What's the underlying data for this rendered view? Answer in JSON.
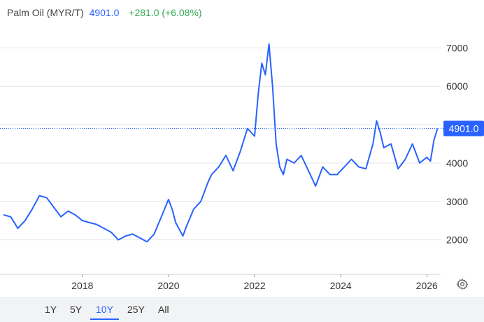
{
  "header": {
    "instrument": "Palm Oil (MYR/T)",
    "price": "4901.0",
    "change": "+281.0 (+6.08%)"
  },
  "colors": {
    "line": "#2962ff",
    "positive": "#34a853",
    "grid": "#e6e6e6"
  },
  "price_tag": "4901.0",
  "ranges": [
    {
      "label": "1Y",
      "active": false
    },
    {
      "label": "5Y",
      "active": false
    },
    {
      "label": "10Y",
      "active": true
    },
    {
      "label": "25Y",
      "active": false
    },
    {
      "label": "All",
      "active": false
    }
  ],
  "settings_icon": "gear-icon",
  "chart_data": {
    "type": "line",
    "title": "Palm Oil (MYR/T)",
    "xlabel": "",
    "ylabel": "",
    "x_ticks": [
      "2018",
      "2020",
      "2022",
      "2024",
      "2026"
    ],
    "y_ticks": [
      2000,
      3000,
      4000,
      5000,
      6000,
      7000
    ],
    "xlim": [
      "2016-03-01",
      "2026-04-15"
    ],
    "ylim": [
      1100,
      7700
    ],
    "grid": "horizontal",
    "last_value": 4901.0,
    "series": [
      {
        "points": [
          [
            "2016-03",
            2650
          ],
          [
            "2016-05",
            2600
          ],
          [
            "2016-07",
            2300
          ],
          [
            "2016-09",
            2500
          ],
          [
            "2016-11",
            2800
          ],
          [
            "2017-01",
            3150
          ],
          [
            "2017-03",
            3100
          ],
          [
            "2017-05",
            2850
          ],
          [
            "2017-07",
            2600
          ],
          [
            "2017-09",
            2750
          ],
          [
            "2017-11",
            2650
          ],
          [
            "2018-01",
            2500
          ],
          [
            "2018-03",
            2450
          ],
          [
            "2018-05",
            2400
          ],
          [
            "2018-07",
            2300
          ],
          [
            "2018-09",
            2200
          ],
          [
            "2018-11",
            2000
          ],
          [
            "2019-01",
            2100
          ],
          [
            "2019-03",
            2150
          ],
          [
            "2019-05",
            2050
          ],
          [
            "2019-07",
            1950
          ],
          [
            "2019-09",
            2150
          ],
          [
            "2019-11",
            2600
          ],
          [
            "2020-01",
            3050
          ],
          [
            "2020-02",
            2800
          ],
          [
            "2020-03",
            2450
          ],
          [
            "2020-05",
            2100
          ],
          [
            "2020-06",
            2350
          ],
          [
            "2020-08",
            2800
          ],
          [
            "2020-10",
            3000
          ],
          [
            "2020-12",
            3500
          ],
          [
            "2021-01",
            3700
          ],
          [
            "2021-03",
            3900
          ],
          [
            "2021-05",
            4200
          ],
          [
            "2021-07",
            3800
          ],
          [
            "2021-09",
            4300
          ],
          [
            "2021-11",
            4900
          ],
          [
            "2022-01",
            4700
          ],
          [
            "2022-02",
            5800
          ],
          [
            "2022-03",
            6600
          ],
          [
            "2022-04",
            6300
          ],
          [
            "2022-05",
            7100
          ],
          [
            "2022-06",
            6000
          ],
          [
            "2022-07",
            4500
          ],
          [
            "2022-08",
            3900
          ],
          [
            "2022-09",
            3700
          ],
          [
            "2022-10",
            4100
          ],
          [
            "2022-12",
            4000
          ],
          [
            "2023-02",
            4200
          ],
          [
            "2023-04",
            3800
          ],
          [
            "2023-06",
            3400
          ],
          [
            "2023-08",
            3900
          ],
          [
            "2023-10",
            3700
          ],
          [
            "2023-12",
            3700
          ],
          [
            "2024-02",
            3900
          ],
          [
            "2024-04",
            4100
          ],
          [
            "2024-06",
            3900
          ],
          [
            "2024-08",
            3850
          ],
          [
            "2024-10",
            4500
          ],
          [
            "2024-11",
            5100
          ],
          [
            "2024-12",
            4800
          ],
          [
            "2025-01",
            4400
          ],
          [
            "2025-03",
            4500
          ],
          [
            "2025-05",
            3850
          ],
          [
            "2025-07",
            4100
          ],
          [
            "2025-09",
            4500
          ],
          [
            "2025-11",
            4000
          ],
          [
            "2026-01",
            4150
          ],
          [
            "2026-02",
            4050
          ],
          [
            "2026-03",
            4600
          ],
          [
            "2026-04",
            4901
          ]
        ]
      }
    ]
  }
}
